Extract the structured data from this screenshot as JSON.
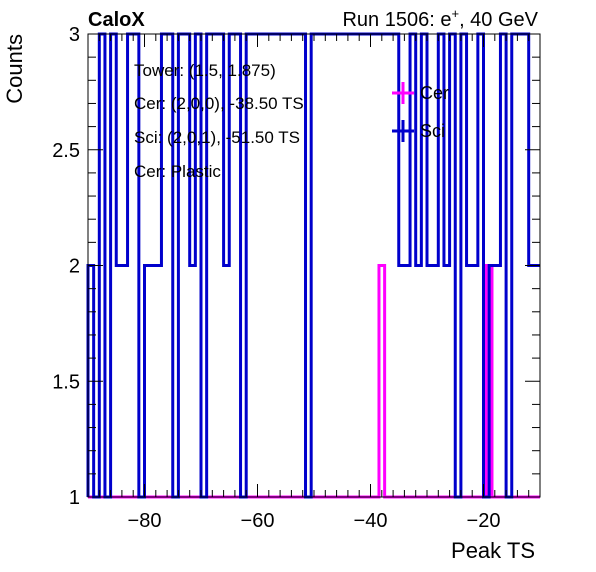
{
  "header": {
    "left": "CaloX",
    "right_prefix": "Run 1506: e",
    "right_sup": "+",
    "right_suffix": ", 40 GeV"
  },
  "annotations": [
    "Tower: (1.5, 1.875)",
    "Cer: (2,0,0), -38.50 TS",
    "Sci: (2,0,1), -51.50 TS",
    "Cer: Plastic"
  ],
  "chart_data": {
    "type": "histogram-step",
    "xlabel": "Peak TS",
    "ylabel": "Counts",
    "xlim": [
      -90,
      -10
    ],
    "ylim": [
      1,
      3
    ],
    "x_ticks": [
      -80,
      -60,
      -40,
      -20
    ],
    "y_ticks": [
      1,
      1.5,
      2,
      2.5,
      3
    ],
    "legend": {
      "placement": "top-right",
      "entries": [
        "Cer",
        "Sci"
      ]
    },
    "series": [
      {
        "name": "Cer",
        "color": "#ff00ff",
        "points": [
          [
            -90,
            1
          ],
          [
            -38.5,
            1
          ],
          [
            -38.5,
            2
          ],
          [
            -37.5,
            2
          ],
          [
            -37.5,
            1
          ],
          [
            -19.5,
            1
          ],
          [
            -19.5,
            2
          ],
          [
            -18.5,
            2
          ],
          [
            -18.5,
            1
          ],
          [
            -10,
            1
          ]
        ]
      },
      {
        "name": "Sci",
        "color": "#0000cc",
        "points": [
          [
            -90,
            1
          ],
          [
            -90,
            2
          ],
          [
            -89,
            2
          ],
          [
            -89,
            1
          ],
          [
            -88,
            1
          ],
          [
            -88,
            3
          ],
          [
            -87,
            3
          ],
          [
            -87,
            1
          ],
          [
            -86,
            1
          ],
          [
            -86,
            3
          ],
          [
            -85,
            3
          ],
          [
            -85,
            2
          ],
          [
            -83,
            2
          ],
          [
            -83,
            3
          ],
          [
            -81,
            3
          ],
          [
            -81,
            1
          ],
          [
            -80,
            1
          ],
          [
            -80,
            2
          ],
          [
            -77,
            2
          ],
          [
            -77,
            3
          ],
          [
            -75,
            3
          ],
          [
            -75,
            1
          ],
          [
            -74,
            1
          ],
          [
            -74,
            3
          ],
          [
            -72,
            3
          ],
          [
            -72,
            2
          ],
          [
            -71,
            2
          ],
          [
            -71,
            3
          ],
          [
            -70,
            3
          ],
          [
            -70,
            1
          ],
          [
            -69,
            1
          ],
          [
            -69,
            3
          ],
          [
            -66,
            3
          ],
          [
            -66,
            2
          ],
          [
            -65,
            2
          ],
          [
            -65,
            3
          ],
          [
            -63,
            3
          ],
          [
            -63,
            1
          ],
          [
            -62,
            1
          ],
          [
            -62,
            3
          ],
          [
            -51.5,
            3
          ],
          [
            -51.5,
            1
          ],
          [
            -50.5,
            1
          ],
          [
            -50.5,
            3
          ],
          [
            -35,
            3
          ],
          [
            -35,
            2
          ],
          [
            -33,
            2
          ],
          [
            -33,
            3
          ],
          [
            -32,
            3
          ],
          [
            -32,
            2
          ],
          [
            -31,
            2
          ],
          [
            -31,
            3
          ],
          [
            -30,
            3
          ],
          [
            -30,
            2
          ],
          [
            -28,
            2
          ],
          [
            -28,
            3
          ],
          [
            -27,
            3
          ],
          [
            -27,
            2
          ],
          [
            -26,
            2
          ],
          [
            -26,
            3
          ],
          [
            -25,
            3
          ],
          [
            -25,
            1
          ],
          [
            -24,
            1
          ],
          [
            -24,
            3
          ],
          [
            -23,
            3
          ],
          [
            -23,
            2
          ],
          [
            -21,
            2
          ],
          [
            -21,
            3
          ],
          [
            -20,
            3
          ],
          [
            -20,
            1
          ],
          [
            -19,
            1
          ],
          [
            -19,
            2
          ],
          [
            -17,
            2
          ],
          [
            -17,
            3
          ],
          [
            -16,
            3
          ],
          [
            -16,
            1
          ],
          [
            -15,
            1
          ],
          [
            -15,
            3
          ],
          [
            -12,
            3
          ],
          [
            -12,
            2
          ],
          [
            -10,
            2
          ]
        ]
      }
    ]
  }
}
